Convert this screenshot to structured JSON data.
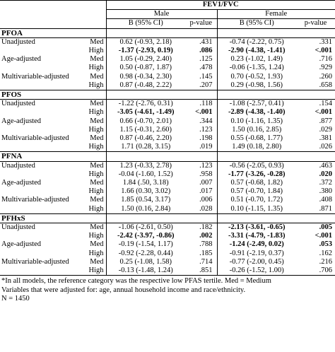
{
  "title": "FEV1/FVC",
  "groups": {
    "male": "Male",
    "female": "Female"
  },
  "columns": {
    "ci": "B (95% CI)",
    "p": "p-value"
  },
  "sections": [
    {
      "name": "PFOA",
      "rows": [
        {
          "label": "Unadjusted",
          "level": "Med",
          "m_ci": "0.62 (-0.93, 2.18)",
          "m_p": ".431",
          "f_ci": "-0.74 (-2.22, 0.75)",
          "f_p": ".331",
          "m_bold": false,
          "f_bold": false
        },
        {
          "label": "",
          "level": "High",
          "m_ci": "-1.37 (-2.93, 0.19)",
          "m_p": ".086",
          "f_ci": "-2.90 (-4.38, -1.41)",
          "f_p": "<.001",
          "m_bold": true,
          "f_bold": true
        },
        {
          "label": "Age-adjusted",
          "level": "Med",
          "m_ci": "1.05 (-0.29, 2.40)",
          "m_p": ".125",
          "f_ci": "0.23 (-1.02, 1.49)",
          "f_p": ".716",
          "m_bold": false,
          "f_bold": false
        },
        {
          "label": "",
          "level": "High",
          "m_ci": "0.50 (-0.87, 1.87)",
          "m_p": ".478",
          "f_ci": "-0.06 (-1.35, 1.24)",
          "f_p": ".929",
          "m_bold": false,
          "f_bold": false
        },
        {
          "label": "Multivariable-adjusted",
          "level": "Med",
          "m_ci": "0.98 (-0.34, 2.30)",
          "m_p": ".145",
          "f_ci": "0.70 (-0.52, 1.93)",
          "f_p": ".260",
          "m_bold": false,
          "f_bold": false
        },
        {
          "label": "",
          "level": "High",
          "m_ci": "0.87 (-0.48, 2.22)",
          "m_p": ".207",
          "f_ci": "0.29 (-0.98, 1.56)",
          "f_p": ".658",
          "m_bold": false,
          "f_bold": false
        }
      ]
    },
    {
      "name": "PFOS",
      "rows": [
        {
          "label": "Unadjusted",
          "level": "Med",
          "m_ci": "-1.22 (-2.76, 0.31)",
          "m_p": ".118",
          "f_ci": "-1.08 (-2.57, 0.41)",
          "f_p": ".154",
          "m_bold": false,
          "f_bold": false
        },
        {
          "label": "",
          "level": "High",
          "m_ci": "-3.05 (-4.61, -1.49)",
          "m_p": "<.001",
          "f_ci": "-2.89 (-4.38, -1.40)",
          "f_p": "<.001",
          "m_bold": true,
          "f_bold": true
        },
        {
          "label": "Age-adjusted",
          "level": "Med",
          "m_ci": "0.66 (-0.70, 2.01)",
          "m_p": ".344",
          "f_ci": "0.10 (-1.16, 1.35)",
          "f_p": ".877",
          "m_bold": false,
          "f_bold": false
        },
        {
          "label": "",
          "level": "High",
          "m_ci": "1.15 (-0.31, 2.60)",
          "m_p": ".123",
          "f_ci": "1.50 (0.16, 2.85)",
          "f_p": ".029",
          "m_bold": false,
          "f_bold": false
        },
        {
          "label": "Multivariable-adjusted",
          "level": "Med",
          "m_ci": "0.87 (-0.46, 2.20)",
          "m_p": ".198",
          "f_ci": "0.55 (-0.68, 1.77)",
          "f_p": ".381",
          "m_bold": false,
          "f_bold": false
        },
        {
          "label": "",
          "level": "High",
          "m_ci": "1.71 (0.28, 3.15)",
          "m_p": ".019",
          "f_ci": "1.49 (0.18, 2.80)",
          "f_p": ".026",
          "m_bold": false,
          "f_bold": false
        }
      ]
    },
    {
      "name": "PFNA",
      "rows": [
        {
          "label": "Unadjusted",
          "level": "Med",
          "m_ci": "1.23 (-0.33, 2.78)",
          "m_p": ".123",
          "f_ci": "-0.56 (-2.05, 0.93)",
          "f_p": ".463",
          "m_bold": false,
          "f_bold": false
        },
        {
          "label": "",
          "level": "High",
          "m_ci": "-0.04 (-1.60, 1.52)",
          "m_p": ".958",
          "f_ci": "-1.77 (-3.26, -0.28)",
          "f_p": ".020",
          "m_bold": false,
          "f_bold": true
        },
        {
          "label": "Age-adjusted",
          "level": "Med",
          "m_ci": "1.84 (.50, 3.18)",
          "m_p": ".007",
          "f_ci": "0.57 (-0.68, 1.82)",
          "f_p": ".372",
          "m_bold": false,
          "f_bold": false
        },
        {
          "label": "",
          "level": "High",
          "m_ci": "1.66 (0.30, 3.02)",
          "m_p": ".017",
          "f_ci": "0.57 (-0.70, 1.84)",
          "f_p": ".380",
          "m_bold": false,
          "f_bold": false
        },
        {
          "label": "Multivariable-adjusted",
          "level": "Med",
          "m_ci": "1.85 (0.54, 3.17)",
          "m_p": ".006",
          "f_ci": "0.51 (-0.70, 1.72)",
          "f_p": ".408",
          "m_bold": false,
          "f_bold": false
        },
        {
          "label": "",
          "level": "High",
          "m_ci": "1.50 (0.16, 2.84)",
          "m_p": ".028",
          "f_ci": "0.10 (-1.15, 1.35)",
          "f_p": ".871",
          "m_bold": false,
          "f_bold": false
        }
      ]
    },
    {
      "name": "PFHxS",
      "rows": [
        {
          "label": "Unadjusted",
          "level": "Med",
          "m_ci": "-1.06 (-2.61, 0.50)",
          "m_p": ".182",
          "f_ci": "-2.13 (-3.61, -0.65)",
          "f_p": ".005",
          "m_bold": false,
          "f_bold": true
        },
        {
          "label": "",
          "level": "High",
          "m_ci": "-2.42 (-3.97, -0.86)",
          "m_p": ".002",
          "f_ci": "-3.31 (-4.79, -1.83)",
          "f_p": "<.001",
          "m_bold": true,
          "f_bold": true
        },
        {
          "label": "Age-adjusted",
          "level": "Med",
          "m_ci": "-0.19 (-1.54, 1.17)",
          "m_p": ".788",
          "f_ci": "-1.24 (-2.49, 0.02)",
          "f_p": ".053",
          "m_bold": false,
          "f_bold": true
        },
        {
          "label": "",
          "level": "High",
          "m_ci": "-0.92 (-2.28, 0.44)",
          "m_p": ".185",
          "f_ci": "-0.91 (-2.19, 0.37)",
          "f_p": ".162",
          "m_bold": false,
          "f_bold": false
        },
        {
          "label": "Multivariable-adjusted",
          "level": "Med",
          "m_ci": "0.25 (-1.08, 1.58)",
          "m_p": ".714",
          "f_ci": "-0.77 (-2.00, 0.45)",
          "f_p": ".216",
          "m_bold": false,
          "f_bold": false
        },
        {
          "label": "",
          "level": "High",
          "m_ci": "-0.13 (-1.48, 1.24)",
          "m_p": ".851",
          "f_ci": "-0.26 (-1.52, 1.00)",
          "f_p": ".706",
          "m_bold": false,
          "f_bold": false
        }
      ]
    }
  ],
  "footnotes": [
    "*In all models, the reference category was the respective low PFAS tertile.  Med = Medium",
    "Variables that were adjusted for: age, annual household income and race/ethnicity.",
    "N = 1450"
  ]
}
